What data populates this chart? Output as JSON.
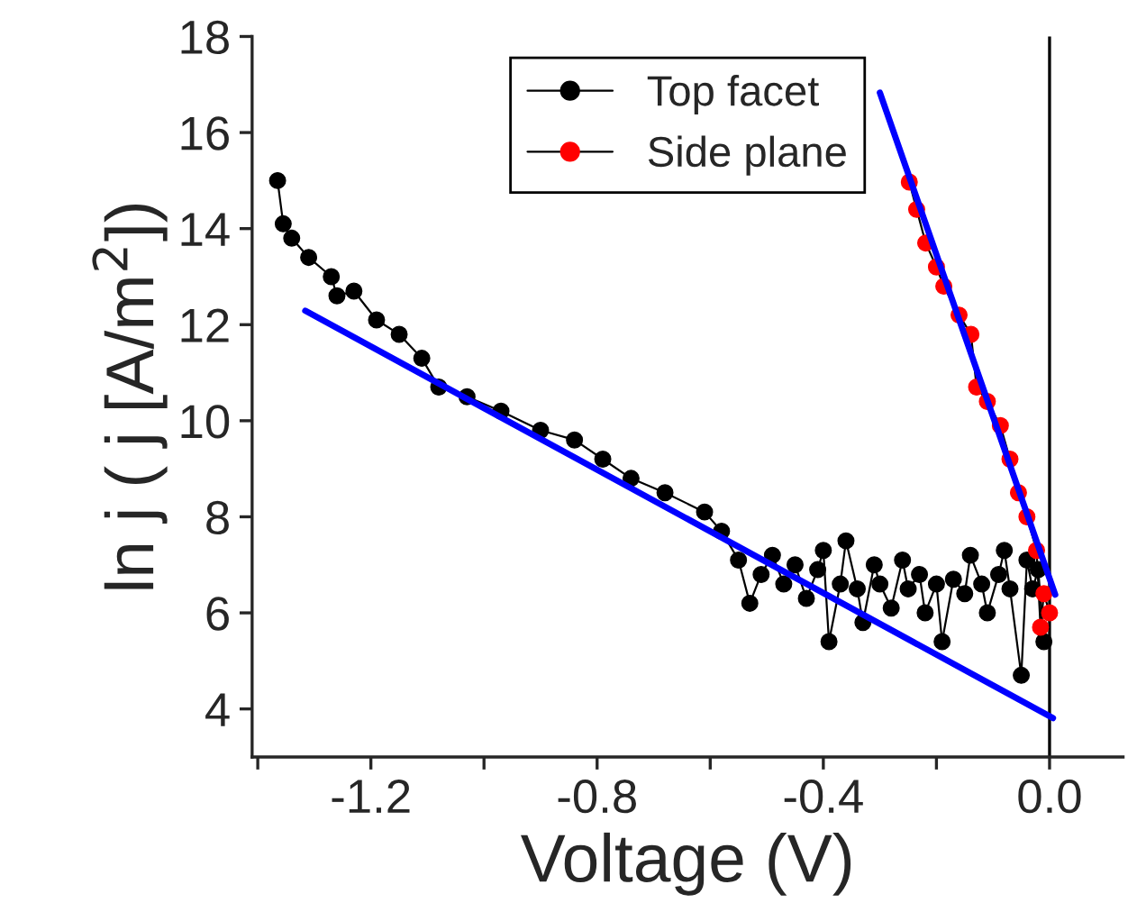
{
  "chart_data": {
    "type": "line",
    "xlabel": "Voltage (V)",
    "ylabel": "ln j ( j [A/m$^{2}$])",
    "xlim": [
      -1.41,
      0.13
    ],
    "ylim": [
      3,
      18
    ],
    "xticks": [
      {
        "value": -1.4,
        "label": null
      },
      {
        "value": -1.2,
        "label": "-1.2"
      },
      {
        "value": -1.0,
        "label": null
      },
      {
        "value": -0.8,
        "label": "-0.8"
      },
      {
        "value": -0.6,
        "label": null
      },
      {
        "value": -0.4,
        "label": "-0.4"
      },
      {
        "value": -0.2,
        "label": null
      },
      {
        "value": 0.0,
        "label": "0.0"
      }
    ],
    "yticks": [
      4,
      6,
      8,
      10,
      12,
      14,
      16,
      18
    ],
    "legend": "top",
    "grid": false,
    "ref_lines": [
      {
        "axis": "x",
        "value": 0.0,
        "color": "#000000"
      }
    ],
    "series": [
      {
        "name": "Top facet",
        "marker": "circle",
        "color": "#000000",
        "x": [
          -1.365,
          -1.355,
          -1.34,
          -1.31,
          -1.27,
          -1.26,
          -1.23,
          -1.19,
          -1.15,
          -1.11,
          -1.08,
          -1.03,
          -0.97,
          -0.9,
          -0.84,
          -0.79,
          -0.74,
          -0.68,
          -0.61,
          -0.58,
          -0.55,
          -0.53,
          -0.51,
          -0.49,
          -0.47,
          -0.45,
          -0.43,
          -0.41,
          -0.4,
          -0.39,
          -0.37,
          -0.36,
          -0.34,
          -0.33,
          -0.31,
          -0.3,
          -0.28,
          -0.26,
          -0.25,
          -0.23,
          -0.22,
          -0.2,
          -0.19,
          -0.17,
          -0.15,
          -0.14,
          -0.12,
          -0.11,
          -0.09,
          -0.08,
          -0.07,
          -0.05,
          -0.04,
          -0.03,
          -0.02,
          -0.01
        ],
        "values": [
          15.0,
          14.1,
          13.8,
          13.4,
          13.0,
          12.6,
          12.7,
          12.1,
          11.8,
          11.3,
          10.7,
          10.5,
          10.2,
          9.8,
          9.6,
          9.2,
          8.8,
          8.5,
          8.1,
          7.7,
          7.1,
          6.2,
          6.8,
          7.2,
          6.6,
          7.0,
          6.3,
          6.9,
          7.3,
          5.4,
          6.6,
          7.5,
          6.5,
          5.8,
          7.0,
          6.6,
          6.1,
          7.1,
          6.5,
          6.8,
          6.0,
          6.6,
          5.4,
          6.7,
          6.4,
          7.2,
          6.6,
          6.0,
          6.8,
          7.3,
          6.5,
          4.7,
          7.1,
          6.5,
          6.9,
          5.4
        ]
      },
      {
        "name": "Side plane",
        "marker": "circle",
        "color": "#ff0000",
        "x": [
          -0.248,
          -0.235,
          -0.219,
          -0.2,
          -0.187,
          -0.16,
          -0.139,
          -0.129,
          -0.11,
          -0.087,
          -0.07,
          -0.055,
          -0.04,
          -0.023,
          -0.016,
          -0.01,
          0.0
        ],
        "values": [
          14.97,
          14.4,
          13.7,
          13.2,
          12.8,
          12.2,
          11.8,
          10.7,
          10.4,
          9.9,
          9.2,
          8.5,
          8.0,
          7.3,
          5.7,
          6.4,
          6.0
        ]
      },
      {
        "type": "line",
        "marker": "none",
        "color": "#0000ff",
        "x": [
          -1.316,
          0.006
        ],
        "values": [
          12.29,
          3.81
        ]
      },
      {
        "type": "line",
        "marker": "none",
        "color": "#0000ff",
        "x": [
          -0.3,
          0.01
        ],
        "values": [
          16.83,
          6.38
        ]
      }
    ]
  }
}
